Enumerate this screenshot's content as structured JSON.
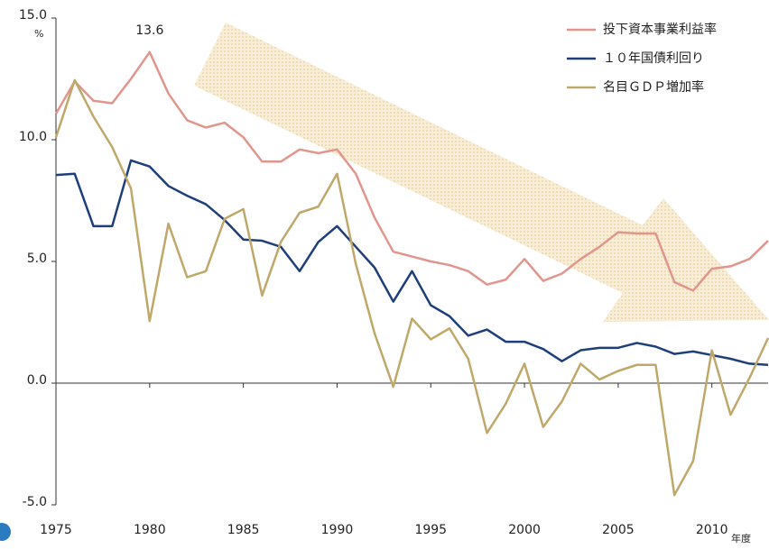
{
  "chart_data": {
    "type": "line",
    "y_unit": "%",
    "x_unit": "年度",
    "xlim": [
      1975,
      2013
    ],
    "xticks": [
      1975,
      1980,
      1985,
      1990,
      1995,
      2000,
      2005,
      2010
    ],
    "ylim": [
      -5,
      15
    ],
    "yticks": [
      {
        "value": -5,
        "label": "-5.0"
      },
      {
        "value": 0,
        "label": "0.0"
      },
      {
        "value": 5,
        "label": "5.0"
      },
      {
        "value": 10,
        "label": "10.0"
      },
      {
        "value": 15,
        "label": "15.0"
      }
    ],
    "legend": "top-right",
    "x": [
      1975,
      1976,
      1977,
      1978,
      1979,
      1980,
      1981,
      1982,
      1983,
      1984,
      1985,
      1986,
      1987,
      1988,
      1989,
      1990,
      1991,
      1992,
      1993,
      1994,
      1995,
      1996,
      1997,
      1998,
      1999,
      2000,
      2001,
      2002,
      2003,
      2004,
      2005,
      2006,
      2007,
      2008,
      2009,
      2010,
      2011,
      2012,
      2013
    ],
    "series": [
      {
        "name": "投下資本事業利益率",
        "color": "#e0968c",
        "values": [
          11.07,
          12.4,
          11.6,
          11.5,
          12.5,
          13.6,
          11.9,
          10.8,
          10.5,
          10.7,
          10.1,
          9.1,
          9.1,
          9.6,
          9.45,
          9.6,
          8.6,
          6.8,
          5.4,
          5.2,
          5.0,
          4.85,
          4.6,
          4.05,
          4.25,
          5.1,
          4.2,
          4.5,
          5.1,
          5.6,
          6.2,
          6.15,
          6.15,
          4.15,
          3.8,
          4.7,
          4.8,
          5.1,
          5.85
        ]
      },
      {
        "name": "１０年国債利回り",
        "color": "#1f3f7a",
        "values": [
          8.55,
          8.6,
          6.45,
          6.45,
          9.15,
          8.9,
          8.1,
          7.7,
          7.35,
          6.7,
          5.9,
          5.85,
          5.6,
          4.6,
          5.8,
          6.45,
          5.6,
          4.75,
          3.35,
          4.6,
          3.2,
          2.75,
          1.95,
          2.2,
          1.7,
          1.7,
          1.4,
          0.9,
          1.35,
          1.45,
          1.45,
          1.65,
          1.5,
          1.2,
          1.3,
          1.15,
          1.0,
          0.8,
          0.75
        ]
      },
      {
        "name": "名目ＧＤＰ増加率",
        "color": "#bfa86a",
        "values": [
          10.1,
          12.45,
          10.95,
          9.7,
          8.0,
          2.55,
          6.55,
          4.35,
          4.6,
          6.75,
          7.15,
          3.6,
          5.8,
          7.0,
          7.25,
          8.6,
          4.9,
          2.05,
          -0.15,
          2.65,
          1.8,
          2.25,
          1.0,
          -2.05,
          -0.85,
          0.8,
          -1.8,
          -0.75,
          0.8,
          0.15,
          0.5,
          0.75,
          0.75,
          -4.6,
          -3.2,
          1.35,
          -1.3,
          0.2,
          1.85
        ]
      }
    ],
    "annotations": [
      {
        "text": "13.6",
        "x": 1980,
        "y": 13.6
      }
    ]
  }
}
